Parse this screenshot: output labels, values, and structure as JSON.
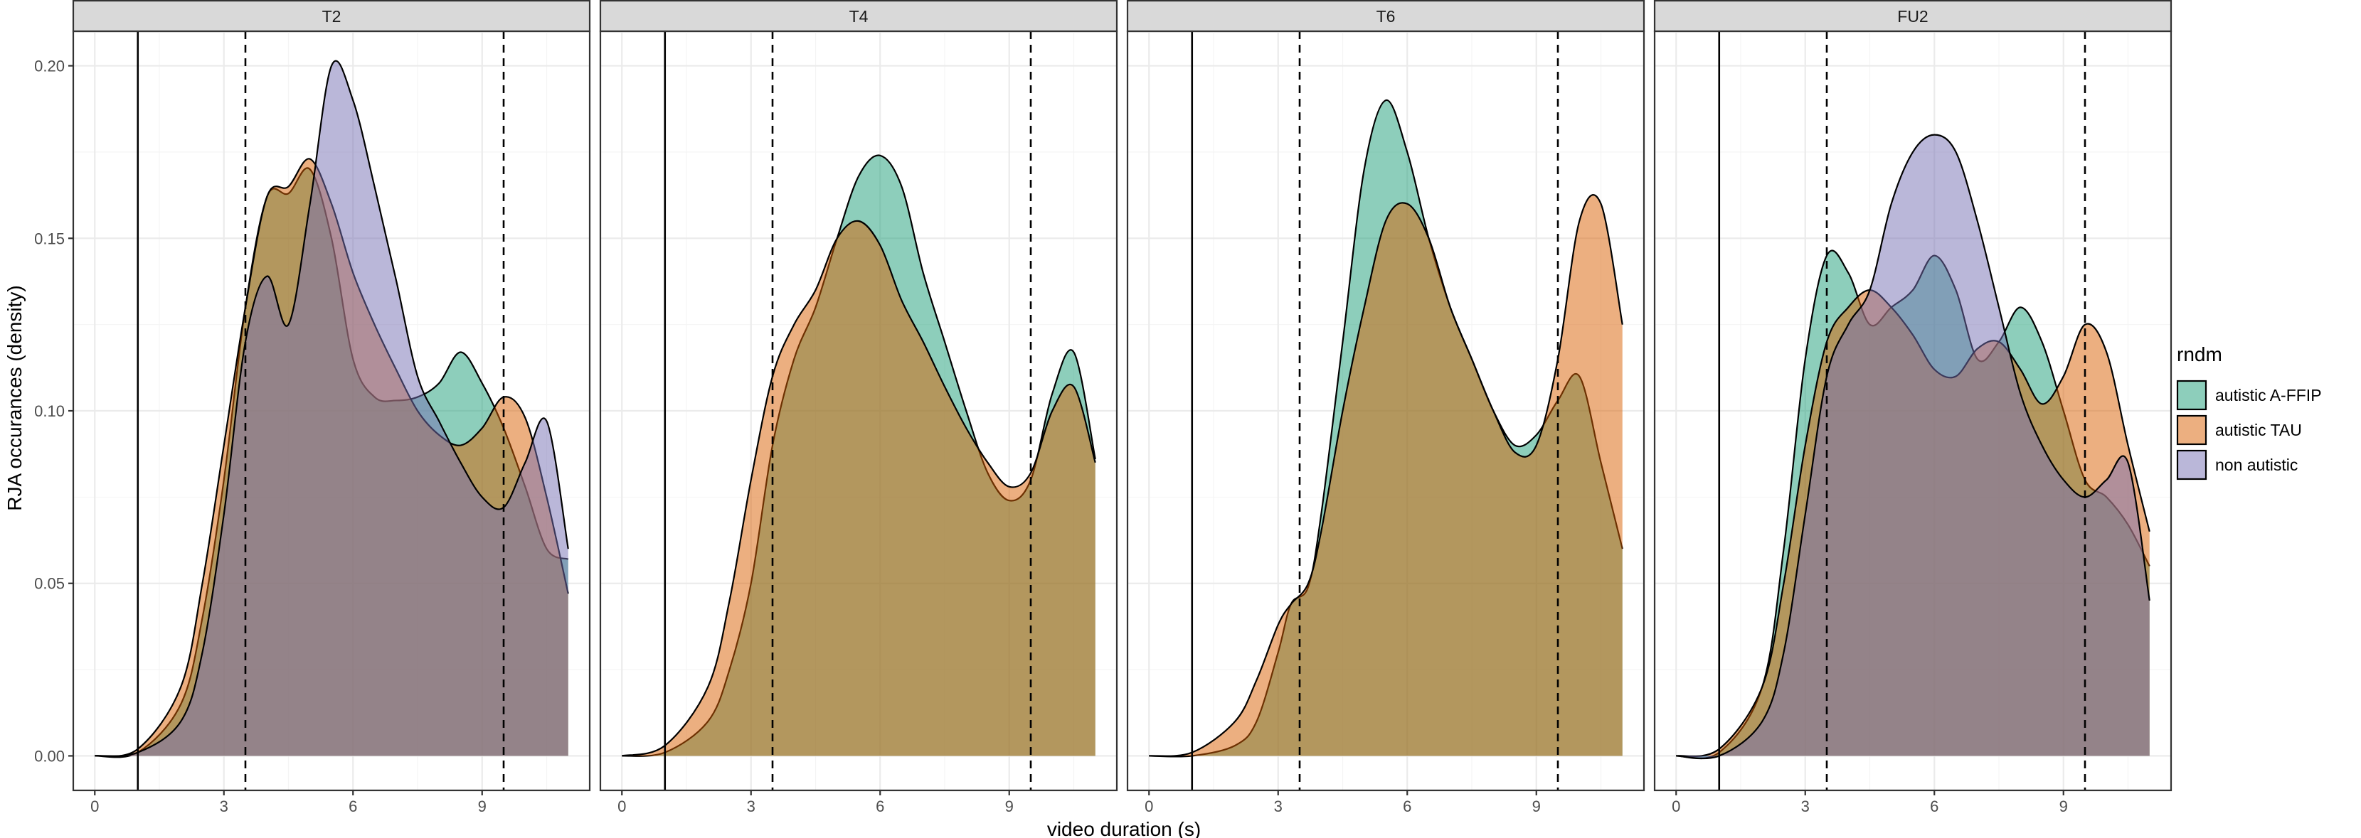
{
  "chart_data": {
    "type": "area",
    "subtype": "faceted-density",
    "xlabel": "video duration (s)",
    "ylabel": "RJA occurances (density)",
    "xlim": [
      -0.5,
      11.5
    ],
    "ylim": [
      -0.01,
      0.21
    ],
    "x_ticks": [
      0,
      3,
      6,
      9
    ],
    "y_ticks": [
      0.0,
      0.05,
      0.1,
      0.15,
      0.2
    ],
    "y_tick_labels": [
      "0.00",
      "0.05",
      "0.10",
      "0.15",
      "0.20"
    ],
    "grid": true,
    "reference_lines": {
      "solid": [
        1.0
      ],
      "dashed": [
        3.5,
        9.5
      ]
    },
    "legend": {
      "title": "rndm",
      "position": "right",
      "entries": [
        {
          "label": "autistic A-FFIP",
          "color": "#1b9e77"
        },
        {
          "label": "autistic TAU",
          "color": "#d95f02"
        },
        {
          "label": "non autistic",
          "color": "#7570b3"
        }
      ]
    },
    "fill_opacity": 0.5,
    "facets": [
      {
        "label": "T2",
        "series": [
          {
            "group": "autistic A-FFIP",
            "x": [
              0,
              1.0,
              2.0,
              2.5,
              3.0,
              3.5,
              4.0,
              4.5,
              5.0,
              5.5,
              6.0,
              6.5,
              7.0,
              7.5,
              8.0,
              8.5,
              9.0,
              9.5,
              10.0,
              10.5,
              11.0
            ],
            "y": [
              0,
              0.001,
              0.015,
              0.04,
              0.08,
              0.13,
              0.162,
              0.163,
              0.17,
              0.15,
              0.115,
              0.104,
              0.103,
              0.104,
              0.108,
              0.117,
              0.108,
              0.095,
              0.078,
              0.06,
              0.057
            ]
          },
          {
            "group": "autistic TAU",
            "x": [
              0,
              1.0,
              2.0,
              2.5,
              3.0,
              3.5,
              4.0,
              4.5,
              5.0,
              5.5,
              6.0,
              6.5,
              7.0,
              7.5,
              8.0,
              8.5,
              9.0,
              9.5,
              10.0,
              10.5,
              11.0
            ],
            "y": [
              0,
              0.002,
              0.02,
              0.05,
              0.09,
              0.13,
              0.162,
              0.165,
              0.173,
              0.16,
              0.14,
              0.125,
              0.112,
              0.1,
              0.093,
              0.09,
              0.095,
              0.104,
              0.098,
              0.075,
              0.047
            ]
          },
          {
            "group": "non autistic",
            "x": [
              0,
              1.0,
              2.0,
              2.5,
              3.0,
              3.5,
              4.0,
              4.5,
              5.0,
              5.5,
              6.0,
              6.5,
              7.0,
              7.5,
              8.0,
              8.5,
              9.0,
              9.5,
              10.0,
              10.5,
              11.0
            ],
            "y": [
              0,
              0.001,
              0.01,
              0.03,
              0.07,
              0.12,
              0.139,
              0.125,
              0.16,
              0.2,
              0.19,
              0.165,
              0.138,
              0.11,
              0.097,
              0.085,
              0.075,
              0.072,
              0.085,
              0.097,
              0.06
            ]
          }
        ]
      },
      {
        "label": "T4",
        "series": [
          {
            "group": "autistic A-FFIP",
            "x": [
              0,
              1.0,
              2.0,
              2.5,
              3.0,
              3.5,
              4.0,
              4.5,
              5.0,
              5.5,
              6.0,
              6.5,
              7.0,
              7.5,
              8.0,
              8.5,
              9.0,
              9.5,
              10.0,
              10.5,
              11.0
            ],
            "y": [
              0,
              0.001,
              0.01,
              0.025,
              0.05,
              0.09,
              0.115,
              0.13,
              0.15,
              0.168,
              0.174,
              0.165,
              0.14,
              0.12,
              0.1,
              0.082,
              0.074,
              0.08,
              0.105,
              0.117,
              0.086
            ]
          },
          {
            "group": "autistic TAU",
            "x": [
              0,
              1.0,
              2.0,
              2.5,
              3.0,
              3.5,
              4.0,
              4.5,
              5.0,
              5.5,
              6.0,
              6.5,
              7.0,
              7.5,
              8.0,
              8.5,
              9.0,
              9.5,
              10.0,
              10.5,
              11.0
            ],
            "y": [
              0,
              0.003,
              0.02,
              0.045,
              0.08,
              0.11,
              0.125,
              0.135,
              0.15,
              0.155,
              0.148,
              0.132,
              0.12,
              0.107,
              0.095,
              0.085,
              0.078,
              0.082,
              0.1,
              0.107,
              0.085
            ]
          }
        ]
      },
      {
        "label": "T6",
        "series": [
          {
            "group": "autistic A-FFIP",
            "x": [
              0,
              1.0,
              2.0,
              2.5,
              3.0,
              3.3,
              3.7,
              4.0,
              4.5,
              5.0,
              5.5,
              6.0,
              6.5,
              7.0,
              7.5,
              8.0,
              8.5,
              9.0,
              9.5,
              10.0,
              10.5,
              11.0
            ],
            "y": [
              0,
              0.0,
              0.003,
              0.01,
              0.03,
              0.044,
              0.049,
              0.07,
              0.12,
              0.17,
              0.19,
              0.175,
              0.15,
              0.13,
              0.115,
              0.1,
              0.09,
              0.093,
              0.103,
              0.11,
              0.085,
              0.06
            ]
          },
          {
            "group": "autistic TAU",
            "x": [
              0,
              1.0,
              2.0,
              2.5,
              3.0,
              3.3,
              3.7,
              4.0,
              4.5,
              5.0,
              5.5,
              6.0,
              6.5,
              7.0,
              7.5,
              8.0,
              8.5,
              9.0,
              9.5,
              10.0,
              10.5,
              11.0
            ],
            "y": [
              0,
              0.001,
              0.01,
              0.022,
              0.038,
              0.044,
              0.05,
              0.065,
              0.1,
              0.13,
              0.155,
              0.16,
              0.15,
              0.13,
              0.115,
              0.1,
              0.088,
              0.09,
              0.115,
              0.155,
              0.16,
              0.125
            ]
          }
        ]
      },
      {
        "label": "FU2",
        "series": [
          {
            "group": "autistic A-FFIP",
            "x": [
              0,
              1.0,
              2.0,
              2.5,
              3.0,
              3.5,
              4.0,
              4.5,
              5.0,
              5.5,
              6.0,
              6.5,
              7.0,
              7.5,
              8.0,
              8.5,
              9.0,
              9.5,
              10.0,
              10.5,
              11.0
            ],
            "y": [
              0,
              0.001,
              0.02,
              0.06,
              0.115,
              0.145,
              0.14,
              0.125,
              0.13,
              0.135,
              0.145,
              0.135,
              0.115,
              0.12,
              0.13,
              0.12,
              0.1,
              0.08,
              0.075,
              0.067,
              0.055
            ]
          },
          {
            "group": "autistic TAU",
            "x": [
              0,
              1.0,
              2.0,
              2.5,
              3.0,
              3.5,
              4.0,
              4.5,
              5.0,
              5.5,
              6.0,
              6.5,
              7.0,
              7.5,
              8.0,
              8.5,
              9.0,
              9.5,
              10.0,
              10.5,
              11.0
            ],
            "y": [
              0,
              0.002,
              0.02,
              0.05,
              0.09,
              0.12,
              0.13,
              0.135,
              0.13,
              0.122,
              0.112,
              0.11,
              0.118,
              0.12,
              0.112,
              0.102,
              0.11,
              0.125,
              0.117,
              0.09,
              0.065
            ]
          },
          {
            "group": "non autistic",
            "x": [
              0,
              1.0,
              2.0,
              2.5,
              3.0,
              3.5,
              4.0,
              4.5,
              5.0,
              5.5,
              6.0,
              6.5,
              7.0,
              7.5,
              8.0,
              8.5,
              9.0,
              9.5,
              10.0,
              10.5,
              11.0
            ],
            "y": [
              0,
              0.0,
              0.01,
              0.03,
              0.07,
              0.11,
              0.125,
              0.135,
              0.16,
              0.175,
              0.18,
              0.175,
              0.155,
              0.13,
              0.105,
              0.09,
              0.08,
              0.075,
              0.08,
              0.085,
              0.045
            ]
          }
        ]
      }
    ]
  }
}
